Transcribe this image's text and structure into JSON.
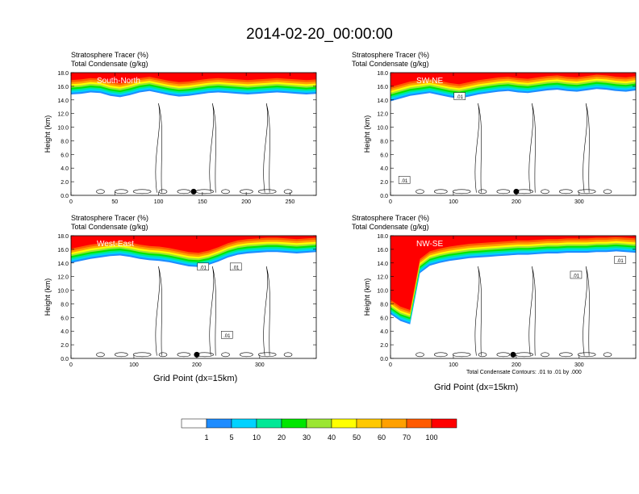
{
  "title": "2014-02-20_00:00:00",
  "field_labels": [
    "Stratosphere Tracer   (%)",
    "Total Condensate   (g/kg)"
  ],
  "contour_note": "Total Condensate Contours: .01 to .01 by .000",
  "legend": {
    "levels": [
      "1",
      "5",
      "10",
      "20",
      "30",
      "40",
      "50",
      "60",
      "70",
      "100"
    ],
    "colors": [
      "#ffffff",
      "#1e8cff",
      "#00d2ff",
      "#00e896",
      "#00e600",
      "#9be632",
      "#ffff00",
      "#ffc800",
      "#ffa000",
      "#ff5a00",
      "#ff0000"
    ]
  },
  "chart_data": [
    {
      "type": "heatmap",
      "name": "South-North",
      "ylabel": "Height (km)",
      "xlabel": "",
      "xlim": [
        0,
        280
      ],
      "ylim": [
        0,
        18
      ],
      "xticks": [
        0,
        50,
        100,
        150,
        200,
        250
      ],
      "yticks": [
        "0.0",
        "2.0",
        "4.0",
        "6.0",
        "8.0",
        "10.0",
        "12.0",
        "14.0",
        "16.0",
        "18.0"
      ],
      "marker_x": 140,
      "tracer_base_km": [
        14.8,
        14.9,
        15.1,
        15.0,
        14.6,
        14.4,
        14.7,
        15.1,
        15.3,
        15.0,
        14.7,
        14.5,
        14.6,
        14.8,
        15.0,
        15.1,
        15.0,
        14.9,
        14.8,
        14.9,
        15.0,
        15.1,
        15.0,
        14.9,
        14.8,
        14.9
      ],
      "contour_labels": []
    },
    {
      "type": "heatmap",
      "name": "SW-NE",
      "ylabel": "Height (km)",
      "xlabel": "",
      "xlim": [
        0,
        390
      ],
      "ylim": [
        0,
        18
      ],
      "xticks": [
        0,
        100,
        200,
        300
      ],
      "yticks": [
        "0.0",
        "2.0",
        "4.0",
        "6.0",
        "8.0",
        "10.0",
        "12.0",
        "14.0",
        "16.0",
        "18.0"
      ],
      "marker_x": 200,
      "tracer_base_km": [
        13.8,
        14.2,
        14.6,
        14.8,
        15.0,
        14.7,
        14.4,
        14.2,
        14.5,
        14.8,
        15.0,
        15.2,
        15.3,
        15.1,
        15.0,
        15.2,
        15.4,
        15.5,
        15.3,
        15.2,
        15.4,
        15.6,
        15.5,
        15.3,
        15.2,
        15.4
      ],
      "contour_labels": [
        {
          "x": 22,
          "y": 2.2,
          "text": ".01"
        },
        {
          "x": 110,
          "y": 14.5,
          "text": ".01"
        }
      ]
    },
    {
      "type": "heatmap",
      "name": "West-East",
      "ylabel": "Height (km)",
      "xlabel": "Grid Point (dx=15km)",
      "xlim": [
        0,
        390
      ],
      "ylim": [
        0,
        18
      ],
      "xticks": [
        0,
        100,
        200,
        300
      ],
      "yticks": [
        "0.0",
        "2.0",
        "4.0",
        "6.0",
        "8.0",
        "10.0",
        "12.0",
        "14.0",
        "16.0",
        "18.0"
      ],
      "marker_x": 200,
      "tracer_base_km": [
        14.0,
        14.3,
        14.6,
        14.8,
        15.0,
        15.1,
        14.9,
        14.6,
        14.4,
        14.3,
        14.1,
        13.8,
        13.5,
        13.4,
        13.7,
        14.2,
        14.8,
        15.2,
        15.4,
        15.5,
        15.6,
        15.6,
        15.5,
        15.4,
        15.5,
        15.6
      ],
      "contour_labels": [
        {
          "x": 210,
          "y": 13.4,
          "text": ".01"
        },
        {
          "x": 262,
          "y": 13.4,
          "text": ".01"
        },
        {
          "x": 248,
          "y": 3.4,
          "text": ".01"
        }
      ]
    },
    {
      "type": "heatmap",
      "name": "NW-SE",
      "ylabel": "Height (km)",
      "xlabel": "Grid Point (dx=15km)",
      "xlim": [
        0,
        390
      ],
      "ylim": [
        0,
        18
      ],
      "xticks": [
        0,
        100,
        200,
        300
      ],
      "yticks": [
        "0.0",
        "2.0",
        "4.0",
        "6.0",
        "8.0",
        "10.0",
        "12.0",
        "14.0",
        "16.0",
        "18.0"
      ],
      "marker_x": 195,
      "tracer_base_km": [
        6.5,
        5.5,
        5.0,
        12.5,
        13.6,
        14.0,
        14.3,
        14.5,
        14.7,
        14.8,
        14.9,
        15.0,
        15.1,
        15.2,
        15.2,
        15.3,
        15.4,
        15.4,
        15.5,
        15.5,
        15.5,
        15.6,
        15.6,
        15.7,
        15.6,
        15.5
      ],
      "contour_labels": [
        {
          "x": 295,
          "y": 12.2,
          "text": ".01"
        },
        {
          "x": 365,
          "y": 14.4,
          "text": ".01"
        }
      ]
    }
  ]
}
